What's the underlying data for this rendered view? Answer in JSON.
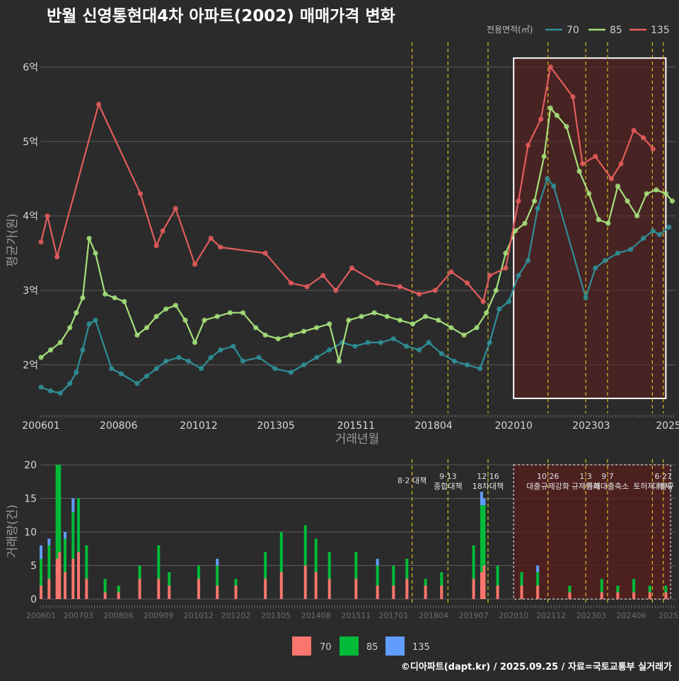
{
  "title": "반월 신영통현대4차 아파트(2002) 매매가격 변화",
  "footer": "©디아파트(dapt.kr) / 2025.09.25 / 자료=국토교통부 실거래가",
  "colors": {
    "bg": "#2b2b2b",
    "grid": "#5a5a5a",
    "s70": "#2f8f97",
    "s85": "#a6e07a",
    "s135": "#e35c5c",
    "b70": "#f8766d",
    "b85": "#00ba38",
    "b135": "#619cff",
    "policy": "#d8c020",
    "box": "#ffffff",
    "shade": "#5a1e1e"
  },
  "chart_data": [
    {
      "type": "line",
      "title": "반월 신영통현대4차 아파트(2002) 매매가격 변화",
      "xlabel": "거래년월",
      "ylabel": "평균가(원)",
      "legend_title": "전용면적(㎡)",
      "legend_position": "top-right",
      "xlim": [
        2006.0,
        2025.8
      ],
      "ylim": [
        1.35,
        6.35
      ],
      "x_ticks": [
        2006.0,
        2008.42,
        2010.92,
        2013.33,
        2015.83,
        2018.25,
        2020.75,
        2023.17,
        2025.58
      ],
      "x_tick_labels": [
        "200601",
        "200806",
        "201012",
        "201305",
        "201511",
        "201804",
        "202010",
        "202303",
        "2025"
      ],
      "y_ticks": [
        2,
        3,
        4,
        5,
        6
      ],
      "y_tick_labels": [
        "2억",
        "3억",
        "4억",
        "5억",
        "6억"
      ],
      "highlight_range": [
        2020.75,
        2025.5
      ],
      "policy_lines": [
        2017.58,
        2018.7,
        2019.95,
        2021.82,
        2023.0,
        2023.68,
        2025.08,
        2025.42
      ],
      "series": [
        {
          "name": "70",
          "color_key": "s70",
          "x": [
            2006.0,
            2006.3,
            2006.6,
            2006.9,
            2007.1,
            2007.3,
            2007.5,
            2007.7,
            2008.2,
            2008.5,
            2009.0,
            2009.3,
            2009.6,
            2009.9,
            2010.3,
            2010.6,
            2011.0,
            2011.3,
            2011.6,
            2012.0,
            2012.3,
            2012.8,
            2013.3,
            2013.8,
            2014.2,
            2014.6,
            2015.0,
            2015.4,
            2015.8,
            2016.2,
            2016.6,
            2017.0,
            2017.4,
            2017.8,
            2018.1,
            2018.5,
            2018.9,
            2019.3,
            2019.7,
            2020.0,
            2020.3,
            2020.6,
            2020.9,
            2021.2,
            2021.5,
            2021.8,
            2022.0,
            2023.0,
            2023.3,
            2023.6,
            2024.0,
            2024.4,
            2024.8,
            2025.1,
            2025.3,
            2025.6
          ],
          "values": [
            1.7,
            1.65,
            1.62,
            1.75,
            1.9,
            2.2,
            2.55,
            2.6,
            1.95,
            1.88,
            1.75,
            1.85,
            1.95,
            2.05,
            2.1,
            2.05,
            1.95,
            2.1,
            2.2,
            2.25,
            2.05,
            2.1,
            1.95,
            1.9,
            2.0,
            2.1,
            2.2,
            2.3,
            2.25,
            2.3,
            2.3,
            2.35,
            2.25,
            2.2,
            2.3,
            2.15,
            2.05,
            2.0,
            1.95,
            2.3,
            2.75,
            2.85,
            3.2,
            3.4,
            4.1,
            4.5,
            4.4,
            2.9,
            3.3,
            3.4,
            3.5,
            3.55,
            3.7,
            3.8,
            3.75,
            3.85
          ]
        },
        {
          "name": "85",
          "color_key": "s85",
          "x": [
            2006.0,
            2006.3,
            2006.6,
            2006.9,
            2007.1,
            2007.3,
            2007.5,
            2007.7,
            2008.0,
            2008.3,
            2008.6,
            2009.0,
            2009.3,
            2009.6,
            2009.9,
            2010.2,
            2010.5,
            2010.8,
            2011.1,
            2011.5,
            2011.9,
            2012.3,
            2012.7,
            2013.0,
            2013.4,
            2013.8,
            2014.2,
            2014.6,
            2015.0,
            2015.3,
            2015.6,
            2016.0,
            2016.4,
            2016.8,
            2017.2,
            2017.6,
            2018.0,
            2018.4,
            2018.8,
            2019.2,
            2019.6,
            2019.9,
            2020.2,
            2020.5,
            2020.8,
            2021.1,
            2021.4,
            2021.7,
            2021.9,
            2022.1,
            2022.4,
            2022.8,
            2023.1,
            2023.4,
            2023.7,
            2024.0,
            2024.3,
            2024.6,
            2024.9,
            2025.2,
            2025.5,
            2025.7
          ],
          "values": [
            2.1,
            2.2,
            2.3,
            2.5,
            2.7,
            2.9,
            3.7,
            3.5,
            2.95,
            2.9,
            2.85,
            2.4,
            2.5,
            2.65,
            2.75,
            2.8,
            2.6,
            2.3,
            2.6,
            2.65,
            2.7,
            2.7,
            2.5,
            2.4,
            2.35,
            2.4,
            2.45,
            2.5,
            2.55,
            2.05,
            2.6,
            2.65,
            2.7,
            2.65,
            2.6,
            2.55,
            2.65,
            2.6,
            2.5,
            2.4,
            2.5,
            2.7,
            3.0,
            3.5,
            3.8,
            3.9,
            4.2,
            4.8,
            5.45,
            5.35,
            5.2,
            4.6,
            4.3,
            3.95,
            3.9,
            4.4,
            4.2,
            4.0,
            4.3,
            4.35,
            4.3,
            4.2
          ]
        },
        {
          "name": "135",
          "color_key": "s135",
          "x": [
            2006.0,
            2006.2,
            2006.5,
            2007.8,
            2009.1,
            2009.6,
            2009.8,
            2010.2,
            2010.8,
            2011.3,
            2011.6,
            2013.0,
            2013.8,
            2014.3,
            2014.8,
            2015.2,
            2015.7,
            2016.5,
            2017.2,
            2017.8,
            2018.3,
            2018.8,
            2019.3,
            2019.8,
            2020.0,
            2020.5,
            2020.9,
            2021.2,
            2021.6,
            2021.9,
            2022.6,
            2022.9,
            2023.3,
            2023.8,
            2024.1,
            2024.5,
            2024.8,
            2025.1
          ],
          "values": [
            3.65,
            4.0,
            3.45,
            5.5,
            4.3,
            3.6,
            3.8,
            4.1,
            3.35,
            3.7,
            3.58,
            3.5,
            3.1,
            3.05,
            3.2,
            3.0,
            3.3,
            3.1,
            3.05,
            2.95,
            3.0,
            3.25,
            3.1,
            2.85,
            3.2,
            3.3,
            4.2,
            4.95,
            5.3,
            6.0,
            5.6,
            4.7,
            4.8,
            4.5,
            4.7,
            5.15,
            5.05,
            4.9
          ]
        }
      ]
    },
    {
      "type": "bar",
      "title": "거래량",
      "xlabel": "",
      "ylabel": "거래량(건)",
      "stacked": true,
      "ylim": [
        0,
        20
      ],
      "y_ticks": [
        0,
        5,
        10,
        15,
        20
      ],
      "xlim": [
        2006.0,
        2025.8
      ],
      "x_ticks": [
        2006.0,
        2007.17,
        2008.42,
        2009.67,
        2010.92,
        2012.08,
        2013.33,
        2014.58,
        2015.83,
        2017.0,
        2018.25,
        2019.5,
        2020.75,
        2021.92,
        2023.17,
        2024.42,
        2025.58
      ],
      "x_tick_labels": [
        "200601",
        "200703",
        "200806",
        "200909",
        "201012",
        "201202",
        "201305",
        "201408",
        "201511",
        "201701",
        "201804",
        "201907",
        "202010",
        "202112",
        "202303",
        "202406",
        "2025"
      ],
      "highlight_range": [
        2020.75,
        2025.65
      ],
      "legend": [
        "70",
        "85",
        "135"
      ],
      "legend_position": "bottom",
      "annotations": [
        {
          "date": "8·2 대책",
          "text": "",
          "x": 2017.58
        },
        {
          "date": "9·13",
          "text": "종합대책",
          "x": 2018.7
        },
        {
          "date": "12·16",
          "text": "18차대책",
          "x": 2019.95
        },
        {
          "date": "10·26",
          "text": "대출규제강화",
          "x": 2021.82
        },
        {
          "date": "1·3",
          "text": "규제완화",
          "x": 2023.0
        },
        {
          "date": "9·7",
          "text": "",
          "x": 2023.68
        },
        {
          "date": "",
          "text": "특례대출축소",
          "x": 2023.68
        },
        {
          "date": "",
          "text": "토허제 해제",
          "x": 2025.08
        },
        {
          "date": "6·27",
          "text": "대출규",
          "x": 2025.42
        }
      ],
      "months": [
        {
          "x": 2006.0,
          "v70": 2,
          "v85": 4,
          "v135": 2
        },
        {
          "x": 2006.25,
          "v70": 3,
          "v85": 5,
          "v135": 1
        },
        {
          "x": 2006.5,
          "v70": 6,
          "v85": 14,
          "v135": 0
        },
        {
          "x": 2006.58,
          "v70": 7,
          "v85": 13,
          "v135": 0
        },
        {
          "x": 2006.75,
          "v70": 4,
          "v85": 5,
          "v135": 1
        },
        {
          "x": 2007.0,
          "v70": 6,
          "v85": 7,
          "v135": 2
        },
        {
          "x": 2007.17,
          "v70": 7,
          "v85": 8,
          "v135": 0
        },
        {
          "x": 2007.42,
          "v70": 3,
          "v85": 5,
          "v135": 0
        },
        {
          "x": 2008.0,
          "v70": 1,
          "v85": 2,
          "v135": 0
        },
        {
          "x": 2008.42,
          "v70": 1,
          "v85": 1,
          "v135": 0
        },
        {
          "x": 2009.08,
          "v70": 3,
          "v85": 2,
          "v135": 0
        },
        {
          "x": 2009.67,
          "v70": 3,
          "v85": 5,
          "v135": 0
        },
        {
          "x": 2010.0,
          "v70": 2,
          "v85": 2,
          "v135": 0
        },
        {
          "x": 2010.92,
          "v70": 3,
          "v85": 2,
          "v135": 0
        },
        {
          "x": 2011.5,
          "v70": 2,
          "v85": 3,
          "v135": 1
        },
        {
          "x": 2012.08,
          "v70": 2,
          "v85": 1,
          "v135": 0
        },
        {
          "x": 2013.0,
          "v70": 3,
          "v85": 4,
          "v135": 0
        },
        {
          "x": 2013.5,
          "v70": 4,
          "v85": 6,
          "v135": 0
        },
        {
          "x": 2014.25,
          "v70": 5,
          "v85": 6,
          "v135": 0
        },
        {
          "x": 2014.58,
          "v70": 4,
          "v85": 5,
          "v135": 0
        },
        {
          "x": 2015.0,
          "v70": 3,
          "v85": 4,
          "v135": 0
        },
        {
          "x": 2015.83,
          "v70": 3,
          "v85": 4,
          "v135": 0
        },
        {
          "x": 2016.5,
          "v70": 2,
          "v85": 3,
          "v135": 1
        },
        {
          "x": 2017.0,
          "v70": 2,
          "v85": 3,
          "v135": 0
        },
        {
          "x": 2017.42,
          "v70": 3,
          "v85": 3,
          "v135": 0
        },
        {
          "x": 2018.0,
          "v70": 2,
          "v85": 1,
          "v135": 0
        },
        {
          "x": 2018.5,
          "v70": 2,
          "v85": 2,
          "v135": 0
        },
        {
          "x": 2019.5,
          "v70": 3,
          "v85": 5,
          "v135": 0
        },
        {
          "x": 2019.75,
          "v70": 4,
          "v85": 10,
          "v135": 2
        },
        {
          "x": 2019.83,
          "v70": 5,
          "v85": 9,
          "v135": 1
        },
        {
          "x": 2020.25,
          "v70": 2,
          "v85": 3,
          "v135": 0
        },
        {
          "x": 2021.0,
          "v70": 2,
          "v85": 2,
          "v135": 0
        },
        {
          "x": 2021.5,
          "v70": 2,
          "v85": 2,
          "v135": 1
        },
        {
          "x": 2022.5,
          "v70": 1,
          "v85": 1,
          "v135": 0
        },
        {
          "x": 2023.5,
          "v70": 1,
          "v85": 2,
          "v135": 0
        },
        {
          "x": 2024.0,
          "v70": 1,
          "v85": 1,
          "v135": 0
        },
        {
          "x": 2024.5,
          "v70": 1,
          "v85": 2,
          "v135": 0
        },
        {
          "x": 2025.0,
          "v70": 1,
          "v85": 1,
          "v135": 0
        },
        {
          "x": 2025.5,
          "v70": 1,
          "v85": 1,
          "v135": 0
        }
      ]
    }
  ]
}
